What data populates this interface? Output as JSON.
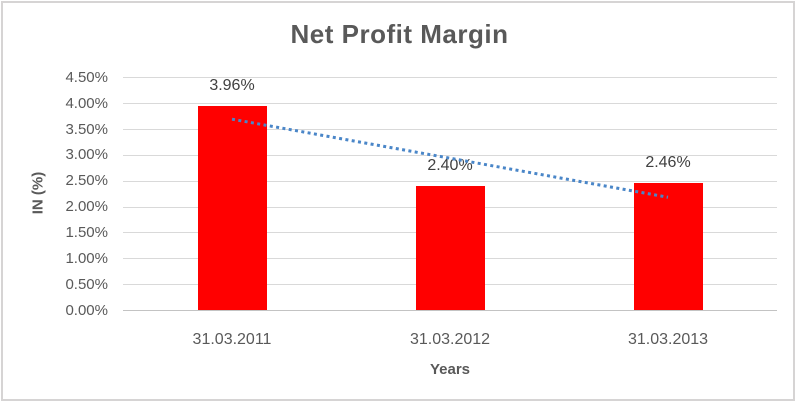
{
  "chart_data": {
    "type": "bar",
    "title": "Net Profit Margin",
    "xlabel": "Years",
    "ylabel": "IN (%)",
    "categories": [
      "31.03.2011",
      "31.03.2012",
      "31.03.2013"
    ],
    "values": [
      3.96,
      2.4,
      2.46
    ],
    "data_labels": [
      "3.96%",
      "2.40%",
      "2.46%"
    ],
    "ylim": [
      0,
      4.5
    ],
    "yticks": [
      {
        "value": 0.0,
        "label": "0.00%"
      },
      {
        "value": 0.5,
        "label": "0.50%"
      },
      {
        "value": 1.0,
        "label": "1.00%"
      },
      {
        "value": 1.5,
        "label": "1.50%"
      },
      {
        "value": 2.0,
        "label": "2.00%"
      },
      {
        "value": 2.5,
        "label": "2.50%"
      },
      {
        "value": 3.0,
        "label": "3.00%"
      },
      {
        "value": 3.5,
        "label": "3.50%"
      },
      {
        "value": 4.0,
        "label": "4.00%"
      },
      {
        "value": 4.5,
        "label": "4.50%"
      }
    ],
    "grid": true,
    "legend": false,
    "bar_color": "#FF0000",
    "text_color": "#595959",
    "gridline_color": "#D9D9D9",
    "trendline": {
      "type": "linear",
      "style": "dotted",
      "color": "#4A86C8",
      "start_value": 3.7,
      "end_value": 2.19
    }
  }
}
